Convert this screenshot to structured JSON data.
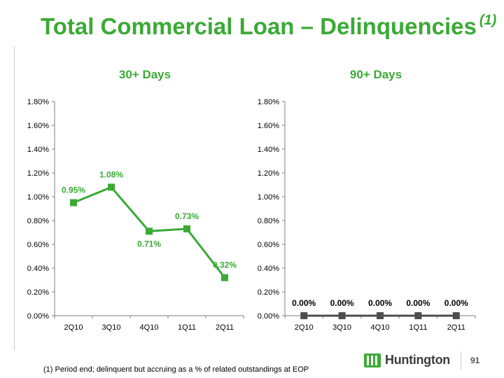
{
  "title": "Total Commercial Loan – Delinquencies",
  "title_note": "(1)",
  "colors": {
    "green": "#3aaa35",
    "dark": "#4d4d4d",
    "axis": "#7f7f7f"
  },
  "chart_data": [
    {
      "type": "line",
      "title": "30+ Days",
      "categories": [
        "2Q10",
        "3Q10",
        "4Q10",
        "1Q11",
        "2Q11"
      ],
      "values": [
        0.95,
        1.08,
        0.71,
        0.73,
        0.32
      ],
      "data_labels": [
        "0.95%",
        "1.08%",
        "0.71%",
        "0.73%",
        "0.32%"
      ],
      "yticks": [
        "0.00%",
        "0.20%",
        "0.40%",
        "0.60%",
        "0.80%",
        "1.00%",
        "1.20%",
        "1.40%",
        "1.60%",
        "1.80%"
      ],
      "ylim": [
        0,
        1.8
      ],
      "grid": false,
      "series_color": "#3aaa35"
    },
    {
      "type": "line",
      "title": "90+ Days",
      "categories": [
        "2Q10",
        "3Q10",
        "4Q10",
        "1Q11",
        "2Q11"
      ],
      "values": [
        0.0,
        0.0,
        0.0,
        0.0,
        0.0
      ],
      "data_labels": [
        "0.00%",
        "0.00%",
        "0.00%",
        "0.00%",
        "0.00%"
      ],
      "yticks": [
        "0.00%",
        "0.20%",
        "0.40%",
        "0.60%",
        "0.80%",
        "1.00%",
        "1.20%",
        "1.40%",
        "1.60%",
        "1.80%"
      ],
      "ylim": [
        0,
        1.8
      ],
      "grid": false,
      "series_color": "#4d4d4d"
    }
  ],
  "footnote": "(1)  Period end; delinquent but accruing as a % of related outstandings at EOP",
  "logo": {
    "text": "Huntington",
    "icon": "huntington-logo-icon"
  },
  "page_number": "91"
}
